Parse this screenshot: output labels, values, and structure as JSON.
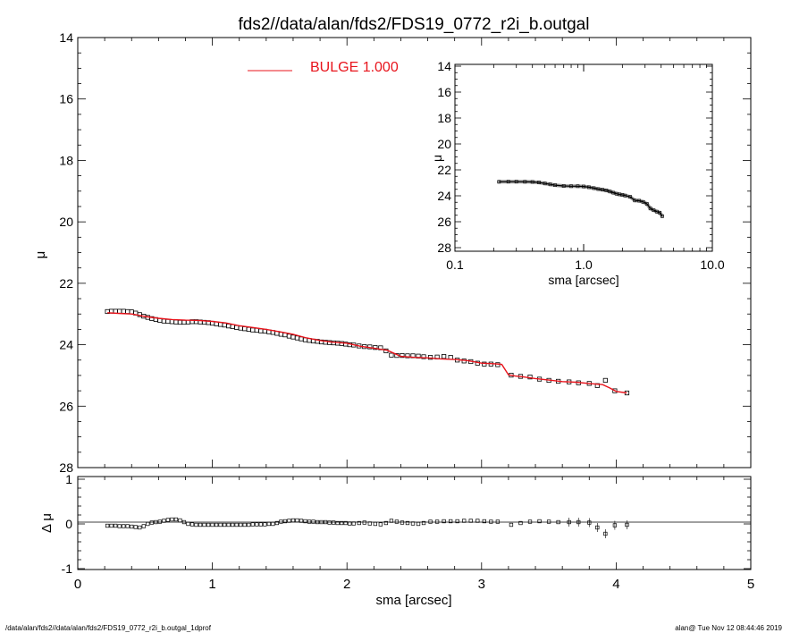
{
  "chart_data": [
    {
      "id": "main",
      "type": "scatter",
      "title": "fds2//data/alan/fds2/FDS19_0772_r2i_b.outgal",
      "xlabel": "",
      "ylabel": "μ",
      "xlim": [
        0,
        5
      ],
      "ylim": [
        28,
        14
      ],
      "y_inverted": true,
      "yticks": [
        "14",
        "16",
        "18",
        "20",
        "22",
        "24",
        "26",
        "28"
      ],
      "legend": {
        "label": "BULGE  1.000",
        "color": "#e8141c",
        "placement": "top-center"
      },
      "series": [
        {
          "kind": "points",
          "color": "#000000",
          "x": [
            0.22,
            0.25,
            0.28,
            0.31,
            0.34,
            0.37,
            0.4,
            0.43,
            0.46,
            0.49,
            0.52,
            0.55,
            0.58,
            0.61,
            0.64,
            0.67,
            0.7,
            0.73,
            0.76,
            0.79,
            0.82,
            0.85,
            0.88,
            0.91,
            0.94,
            0.97,
            1.0,
            1.03,
            1.06,
            1.09,
            1.12,
            1.15,
            1.18,
            1.21,
            1.24,
            1.27,
            1.3,
            1.33,
            1.36,
            1.39,
            1.42,
            1.45,
            1.48,
            1.51,
            1.54,
            1.57,
            1.6,
            1.63,
            1.66,
            1.69,
            1.72,
            1.75,
            1.78,
            1.81,
            1.84,
            1.87,
            1.9,
            1.93,
            1.96,
            1.99,
            2.02,
            2.05,
            2.09,
            2.13,
            2.17,
            2.21,
            2.25,
            2.29,
            2.33,
            2.37,
            2.41,
            2.45,
            2.49,
            2.53,
            2.57,
            2.62,
            2.67,
            2.72,
            2.77,
            2.82,
            2.87,
            2.92,
            2.97,
            3.02,
            3.07,
            3.12,
            3.22,
            3.29,
            3.36,
            3.43,
            3.5,
            3.57,
            3.65,
            3.72,
            3.8,
            3.86,
            3.92,
            3.99,
            4.08
          ],
          "y": [
            22.92,
            22.91,
            22.91,
            22.91,
            22.91,
            22.92,
            22.93,
            22.97,
            23.02,
            23.07,
            23.11,
            23.15,
            23.18,
            23.21,
            23.23,
            23.24,
            23.25,
            23.26,
            23.27,
            23.27,
            23.26,
            23.25,
            23.25,
            23.26,
            23.27,
            23.28,
            23.3,
            23.32,
            23.34,
            23.36,
            23.39,
            23.41,
            23.44,
            23.46,
            23.48,
            23.5,
            23.52,
            23.53,
            23.55,
            23.56,
            23.58,
            23.6,
            23.63,
            23.66,
            23.68,
            23.72,
            23.75,
            23.78,
            23.81,
            23.84,
            23.86,
            23.88,
            23.89,
            23.91,
            23.92,
            23.93,
            23.94,
            23.95,
            23.96,
            23.98,
            24.0,
            24.01,
            24.04,
            24.06,
            24.07,
            24.09,
            24.1,
            24.2,
            24.34,
            24.35,
            24.35,
            24.36,
            24.36,
            24.37,
            24.39,
            24.41,
            24.4,
            24.38,
            24.41,
            24.5,
            24.53,
            24.55,
            24.6,
            24.63,
            24.63,
            24.65,
            24.99,
            25.03,
            25.05,
            25.12,
            25.16,
            25.19,
            25.21,
            25.24,
            25.26,
            25.33,
            25.16,
            25.5,
            25.57
          ]
        },
        {
          "kind": "line",
          "color": "#e8141c",
          "x": [
            0.22,
            0.3,
            0.4,
            0.45,
            0.5,
            0.6,
            0.7,
            0.8,
            0.9,
            1.0,
            1.1,
            1.2,
            1.3,
            1.4,
            1.5,
            1.6,
            1.7,
            1.8,
            1.9,
            2.0,
            2.1,
            2.2,
            2.3,
            2.35,
            2.4,
            2.5,
            2.6,
            2.7,
            2.8,
            2.9,
            3.0,
            3.1,
            3.15,
            3.2,
            3.25,
            3.3,
            3.4,
            3.5,
            3.6,
            3.7,
            3.8,
            3.9,
            3.95,
            4.0,
            4.08
          ],
          "y": [
            22.96,
            22.98,
            23.0,
            23.04,
            23.08,
            23.14,
            23.18,
            23.2,
            23.21,
            23.24,
            23.29,
            23.38,
            23.44,
            23.5,
            23.58,
            23.66,
            23.78,
            23.86,
            23.92,
            23.95,
            24.05,
            24.11,
            24.18,
            24.28,
            24.38,
            24.41,
            24.43,
            24.46,
            24.48,
            24.52,
            24.6,
            24.62,
            24.64,
            24.98,
            25.02,
            25.04,
            25.1,
            25.15,
            25.2,
            25.22,
            25.26,
            25.3,
            25.4,
            25.52,
            25.57
          ]
        }
      ]
    },
    {
      "id": "inset",
      "type": "line",
      "xscale": "log",
      "xlabel": "sma [arcsec]",
      "ylabel": "μ",
      "xlim": [
        0.1,
        10
      ],
      "ylim": [
        28,
        14
      ],
      "y_inverted": true,
      "xticks": [
        "0.1",
        "1.0",
        "10.0"
      ],
      "yticks": [
        "14",
        "16",
        "18",
        "20",
        "22",
        "24",
        "26",
        "28"
      ],
      "series": [
        {
          "color": "#000000",
          "x": [
            0.22,
            0.26,
            0.3,
            0.35,
            0.4,
            0.45,
            0.5,
            0.55,
            0.6,
            0.7,
            0.8,
            0.9,
            1.0,
            1.1,
            1.2,
            1.3,
            1.4,
            1.5,
            1.6,
            1.7,
            1.8,
            1.9,
            2.0,
            2.1,
            2.3,
            2.5,
            2.7,
            2.9,
            3.1,
            3.3,
            3.5,
            3.7,
            3.9,
            4.08
          ],
          "y": [
            22.92,
            22.91,
            22.91,
            22.92,
            22.93,
            22.97,
            23.05,
            23.12,
            23.18,
            23.24,
            23.26,
            23.26,
            23.28,
            23.34,
            23.41,
            23.48,
            23.53,
            23.58,
            23.67,
            23.76,
            23.84,
            23.89,
            23.93,
            23.98,
            24.08,
            24.36,
            24.38,
            24.47,
            24.62,
            24.98,
            25.11,
            25.22,
            25.3,
            25.57
          ]
        }
      ]
    },
    {
      "id": "residual",
      "type": "scatter",
      "xlabel": "sma [arcsec]",
      "ylabel": "Δ μ",
      "xlim": [
        0,
        5
      ],
      "ylim": [
        -1,
        1
      ],
      "xticks": [
        "0",
        "1",
        "2",
        "3",
        "4",
        "5"
      ],
      "yticks": [
        "-1",
        "0",
        "1"
      ],
      "series": [
        {
          "kind": "points",
          "color": "#000000",
          "x": [
            0.22,
            0.25,
            0.28,
            0.31,
            0.34,
            0.37,
            0.4,
            0.43,
            0.46,
            0.49,
            0.52,
            0.55,
            0.58,
            0.61,
            0.64,
            0.67,
            0.7,
            0.73,
            0.76,
            0.79,
            0.82,
            0.85,
            0.88,
            0.91,
            0.94,
            0.97,
            1.0,
            1.03,
            1.06,
            1.09,
            1.12,
            1.15,
            1.18,
            1.21,
            1.24,
            1.27,
            1.3,
            1.33,
            1.36,
            1.39,
            1.42,
            1.45,
            1.48,
            1.51,
            1.54,
            1.57,
            1.6,
            1.63,
            1.66,
            1.69,
            1.72,
            1.75,
            1.78,
            1.81,
            1.84,
            1.87,
            1.9,
            1.93,
            1.96,
            1.99,
            2.02,
            2.05,
            2.09,
            2.13,
            2.17,
            2.21,
            2.25,
            2.29,
            2.33,
            2.37,
            2.41,
            2.45,
            2.49,
            2.53,
            2.57,
            2.62,
            2.67,
            2.72,
            2.77,
            2.82,
            2.87,
            2.92,
            2.97,
            3.02,
            3.07,
            3.12,
            3.22,
            3.29,
            3.36,
            3.43,
            3.5,
            3.57,
            3.65,
            3.72,
            3.8,
            3.86,
            3.92,
            3.99,
            4.08
          ],
          "y": [
            -0.04,
            -0.04,
            -0.04,
            -0.05,
            -0.05,
            -0.05,
            -0.06,
            -0.07,
            -0.08,
            -0.05,
            0.0,
            0.03,
            0.04,
            0.05,
            0.07,
            0.09,
            0.1,
            0.1,
            0.08,
            0.04,
            0.0,
            -0.01,
            -0.02,
            -0.02,
            -0.02,
            -0.02,
            -0.02,
            -0.02,
            -0.02,
            -0.02,
            -0.02,
            -0.02,
            -0.02,
            -0.02,
            -0.02,
            -0.02,
            -0.01,
            -0.01,
            -0.01,
            -0.01,
            0.0,
            0.0,
            0.02,
            0.05,
            0.06,
            0.07,
            0.08,
            0.08,
            0.07,
            0.06,
            0.05,
            0.05,
            0.04,
            0.04,
            0.04,
            0.03,
            0.03,
            0.02,
            0.02,
            0.02,
            0.01,
            0.01,
            0.02,
            0.03,
            0.01,
            0.0,
            -0.01,
            0.02,
            0.07,
            0.05,
            0.03,
            0.02,
            0.01,
            0.0,
            0.02,
            0.05,
            0.05,
            0.06,
            0.06,
            0.06,
            0.07,
            0.07,
            0.07,
            0.06,
            0.05,
            0.05,
            -0.02,
            0.02,
            0.05,
            0.06,
            0.05,
            0.04,
            0.04,
            0.04,
            0.03,
            -0.08,
            -0.22,
            -0.03,
            -0.02
          ]
        }
      ]
    }
  ],
  "footer": {
    "left": "/data/alan/fds2//data/alan/fds2/FDS19_0772_r2i_b.outgal_1dprof",
    "right": "alan@  Tue Nov 12 08:44:46 2019"
  }
}
